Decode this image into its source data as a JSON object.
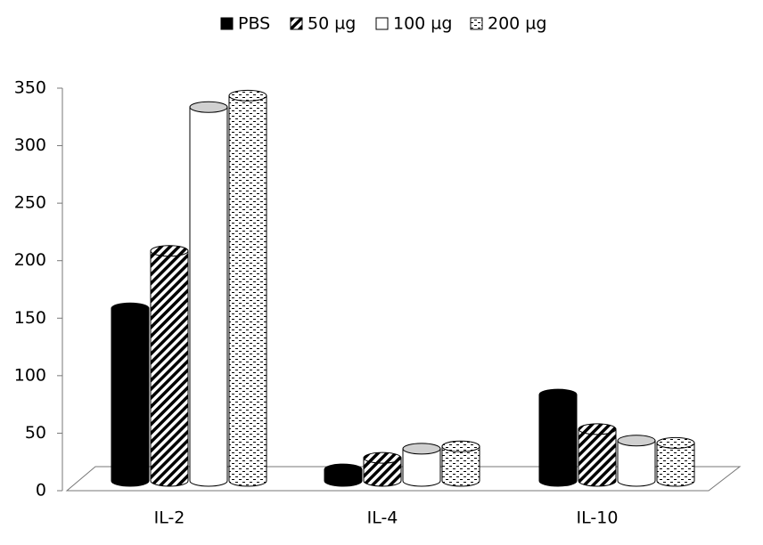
{
  "chart_data": {
    "type": "cylinder-bar",
    "categories": [
      "IL-2",
      "IL-4",
      "IL-10"
    ],
    "series": [
      {
        "name": "PBS",
        "color": "#000000",
        "pattern": "solid",
        "values": [
          150,
          10,
          75
        ]
      },
      {
        "name": "50 µg",
        "color": "#000000",
        "pattern": "diagonal",
        "values": [
          200,
          20,
          45
        ]
      },
      {
        "name": "100 µg",
        "color": "#ffffff",
        "pattern": "solid",
        "values": [
          325,
          28,
          35
        ]
      },
      {
        "name": "200 µg",
        "color": "#000000",
        "pattern": "dots",
        "values": [
          335,
          30,
          33
        ]
      }
    ],
    "ylim": [
      0,
      350
    ],
    "yticks": [
      0,
      50,
      100,
      150,
      200,
      250,
      300,
      350
    ],
    "legend": "top"
  }
}
